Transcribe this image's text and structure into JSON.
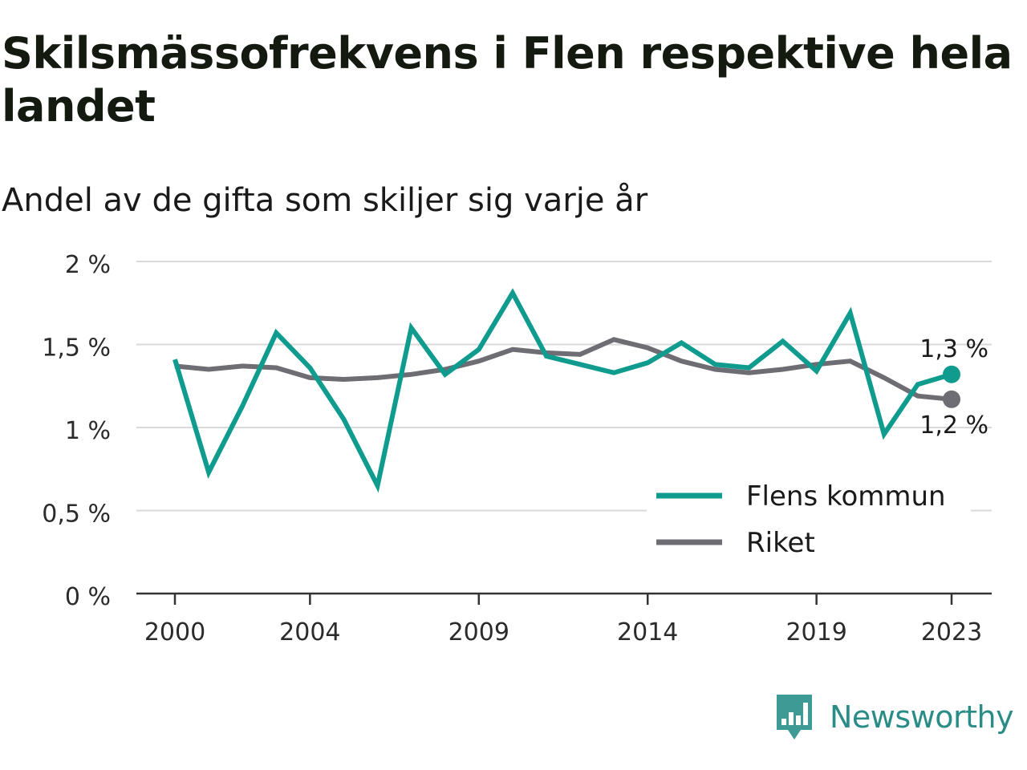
{
  "header": {
    "title": "Skilsmässofrekvens i Flen respektive hela landet",
    "subtitle": "Andel av de gifta som skiljer sig varje år"
  },
  "brand": {
    "name": "Newsworthy",
    "icon": "bar-chart-speech-bubble-icon",
    "color": "#2a8c86"
  },
  "chart_data": {
    "type": "line",
    "title": "Skilsmässofrekvens i Flen respektive hela landet",
    "subtitle": "Andel av de gifta som skiljer sig varje år",
    "xlabel": "",
    "ylabel": "",
    "x": [
      2000,
      2001,
      2002,
      2003,
      2004,
      2005,
      2006,
      2007,
      2008,
      2009,
      2010,
      2011,
      2012,
      2013,
      2014,
      2015,
      2016,
      2017,
      2018,
      2019,
      2020,
      2021,
      2022,
      2023
    ],
    "x_ticks": [
      2000,
      2004,
      2009,
      2014,
      2019,
      2023
    ],
    "x_tick_labels": [
      "2000",
      "2004",
      "2009",
      "2014",
      "2019",
      "2023"
    ],
    "y_ticks": [
      0,
      0.5,
      1,
      1.5,
      2
    ],
    "y_tick_labels": [
      "0 %",
      "0,5 %",
      "1 %",
      "1,5 %",
      "2 %"
    ],
    "ylim": [
      0,
      2
    ],
    "grid": "horizontal",
    "legend_position": "bottom-right",
    "series": [
      {
        "name": "Flens kommun",
        "color": "#0f9b8e",
        "values": [
          1.41,
          0.73,
          1.13,
          1.57,
          1.36,
          1.05,
          0.65,
          1.6,
          1.32,
          1.47,
          1.81,
          1.43,
          1.38,
          1.33,
          1.39,
          1.51,
          1.38,
          1.36,
          1.52,
          1.34,
          1.69,
          0.96,
          1.26,
          1.32
        ],
        "end_label": "1,3 %"
      },
      {
        "name": "Riket",
        "color": "#6e6d73",
        "values": [
          1.37,
          1.35,
          1.37,
          1.36,
          1.3,
          1.29,
          1.3,
          1.32,
          1.35,
          1.4,
          1.47,
          1.45,
          1.44,
          1.53,
          1.48,
          1.4,
          1.35,
          1.33,
          1.35,
          1.38,
          1.4,
          1.3,
          1.19,
          1.17
        ],
        "end_label": "1,2 %"
      }
    ]
  }
}
